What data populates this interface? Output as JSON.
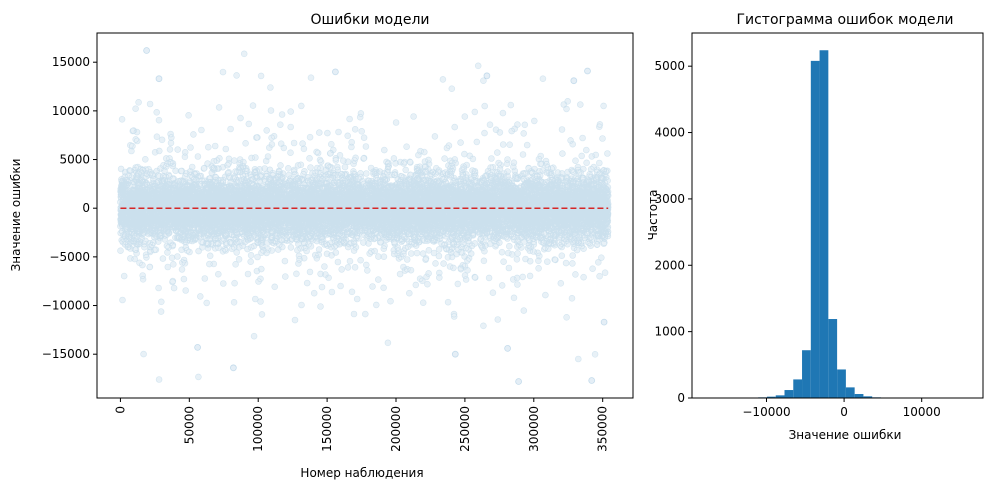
{
  "chart_data": [
    {
      "type": "scatter",
      "title": "Ошибки модели",
      "xlabel": "Номер наблюдения",
      "ylabel": "Значение ошибки",
      "xlim": [
        -17000,
        372000
      ],
      "ylim": [
        -19500,
        18000
      ],
      "xticks": [
        0,
        50000,
        100000,
        150000,
        200000,
        250000,
        300000,
        350000
      ],
      "xtick_labels": [
        "0",
        "50000",
        "100000",
        "150000",
        "200000",
        "250000",
        "300000",
        "350000"
      ],
      "yticks": [
        -15000,
        -10000,
        -5000,
        0,
        5000,
        10000,
        15000
      ],
      "ytick_labels": [
        "−15000",
        "−10000",
        "−5000",
        "0",
        "5000",
        "10000",
        "15000"
      ],
      "point_color": "#1f77b4",
      "point_alpha": 0.1,
      "reference_line": {
        "y": 0,
        "x_range": [
          0,
          354000
        ],
        "color": "#d62728",
        "style": "dashed"
      },
      "approx_observations": 14000,
      "error_std_estimate": 1500,
      "notable_points": [
        {
          "x": 19000,
          "y": 16200
        },
        {
          "x": 28000,
          "y": 13300
        },
        {
          "x": 56000,
          "y": -14300
        },
        {
          "x": 82000,
          "y": -16400
        },
        {
          "x": 156000,
          "y": 14000
        },
        {
          "x": 243000,
          "y": -15000
        },
        {
          "x": 266000,
          "y": 13600
        },
        {
          "x": 281000,
          "y": -14400
        },
        {
          "x": 289000,
          "y": -17800
        },
        {
          "x": 329000,
          "y": 13100
        },
        {
          "x": 339000,
          "y": 14100
        },
        {
          "x": 342000,
          "y": -17700
        },
        {
          "x": 351000,
          "y": -11700
        }
      ],
      "grid": false
    },
    {
      "type": "bar",
      "title": "Гистограмма ошибок модели",
      "xlabel": "Значение ошибки",
      "ylabel": "Частота",
      "xlim": [
        -19600,
        17900
      ],
      "ylim": [
        0,
        5500
      ],
      "xticks": [
        -10000,
        0,
        10000
      ],
      "xtick_labels": [
        "−10000",
        "0",
        "10000"
      ],
      "yticks": [
        0,
        1000,
        2000,
        3000,
        4000,
        5000
      ],
      "ytick_labels": [
        "0",
        "1000",
        "2000",
        "3000",
        "4000",
        "5000"
      ],
      "bar_color": "#1f77b4",
      "bins_start": -17850,
      "bin_width": 1130,
      "values": [
        1,
        0,
        2,
        1,
        3,
        5,
        10,
        20,
        40,
        120,
        280,
        720,
        5080,
        5240,
        1190,
        430,
        160,
        60,
        25,
        10,
        4,
        2,
        1,
        0,
        1,
        0,
        0,
        0,
        0,
        1
      ],
      "grid": false
    }
  ]
}
